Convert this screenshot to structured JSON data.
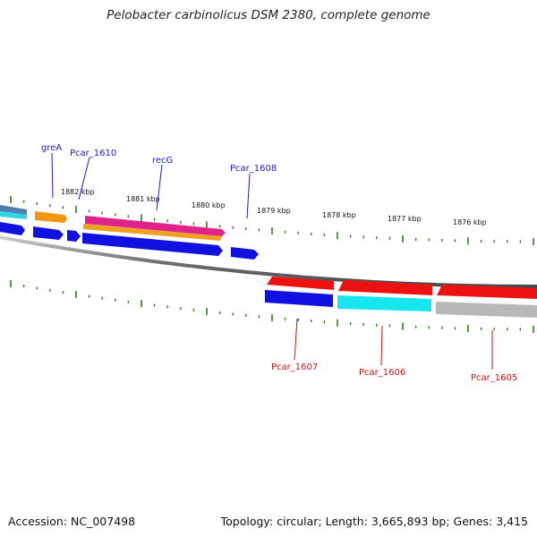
{
  "title": "Pelobacter carbinolicus DSM 2380, complete genome",
  "footer": {
    "accession": "Accession: NC_007498",
    "topology": "Topology: circular; Length: 3,665,893 bp; Genes: 3,415"
  },
  "colors": {
    "backbone": "#888888",
    "tick": "#2e7d1a",
    "label_blue": "#1a1acc",
    "label_red": "#cc1111"
  },
  "scale_labels": [
    "1882 kbp",
    "1881 kbp",
    "1880 kbp",
    "1879 kbp",
    "1878 kbp",
    "1877 kbp",
    "1876 kbp"
  ],
  "gene_labels_top": [
    "greA",
    "Pcar_1610",
    "recG",
    "Pcar_1608"
  ],
  "gene_labels_bottom": [
    "Pcar_1607",
    "Pcar_1606",
    "Pcar_1605"
  ]
}
